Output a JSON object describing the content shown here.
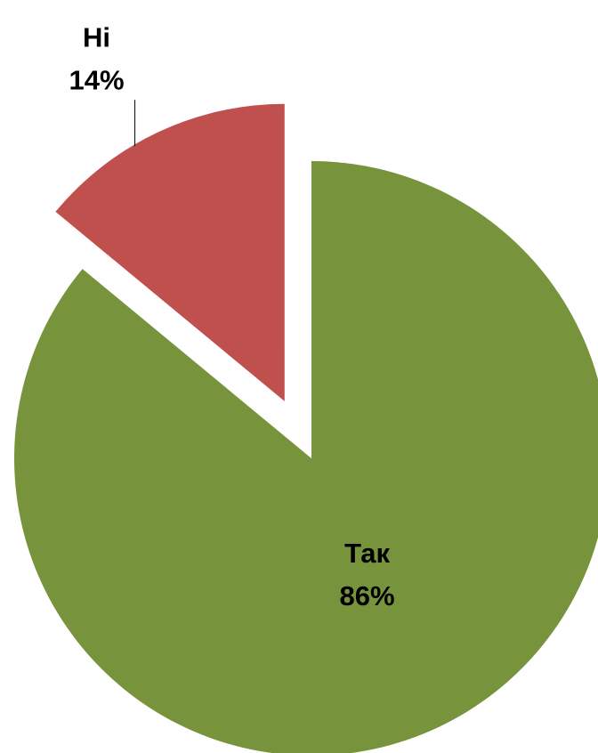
{
  "chart_data": {
    "type": "pie",
    "categories": [
      "Так",
      "Ні"
    ],
    "values": [
      86,
      14
    ],
    "value_labels": [
      "86%",
      "14%"
    ],
    "colors": [
      "#77933c",
      "#c0504d"
    ]
  }
}
